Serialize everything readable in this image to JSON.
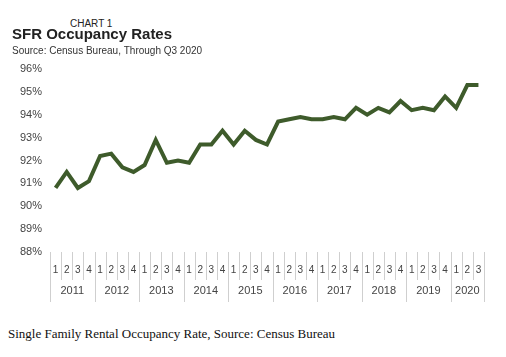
{
  "chart_data": {
    "type": "line",
    "chart_label": "CHART 1",
    "title": "SFR Occupancy Rates",
    "subtitle": "Source: Census Bureau, Through Q3 2020",
    "caption": "Single Family Rental Occupancy Rate, Source: Census Bureau",
    "categories": [
      "1",
      "2",
      "3",
      "4",
      "1",
      "2",
      "3",
      "4",
      "1",
      "2",
      "3",
      "4",
      "1",
      "2",
      "3",
      "4",
      "1",
      "2",
      "3",
      "4",
      "1",
      "2",
      "3",
      "4",
      "1",
      "2",
      "3",
      "4",
      "1",
      "2",
      "3",
      "4",
      "1",
      "2",
      "3",
      "4",
      "1",
      "2",
      "3"
    ],
    "category_groups": [
      "2011",
      "2012",
      "2013",
      "2014",
      "2015",
      "2016",
      "2017",
      "2018",
      "2019",
      "2020"
    ],
    "values": [
      90.8,
      91.5,
      90.8,
      91.1,
      92.2,
      92.3,
      91.7,
      91.5,
      91.8,
      92.9,
      91.9,
      92.0,
      91.9,
      92.7,
      92.7,
      93.3,
      92.7,
      93.3,
      92.9,
      92.7,
      93.7,
      93.8,
      93.9,
      93.8,
      93.8,
      93.9,
      93.8,
      94.3,
      94.0,
      94.3,
      94.1,
      94.6,
      94.2,
      94.3,
      94.2,
      94.8,
      94.3,
      95.3,
      95.3
    ],
    "color": "#3e5b2b",
    "ylim": [
      88,
      96
    ],
    "yticks": [
      {
        "value": 88,
        "label": "88%"
      },
      {
        "value": 89,
        "label": "89%"
      },
      {
        "value": 90,
        "label": "90%"
      },
      {
        "value": 91,
        "label": "91%"
      },
      {
        "value": 92,
        "label": "92%"
      },
      {
        "value": 93,
        "label": "93%"
      },
      {
        "value": 94,
        "label": "94%"
      },
      {
        "value": 95,
        "label": "95%"
      },
      {
        "value": 96,
        "label": "96%"
      }
    ],
    "grid": false
  }
}
